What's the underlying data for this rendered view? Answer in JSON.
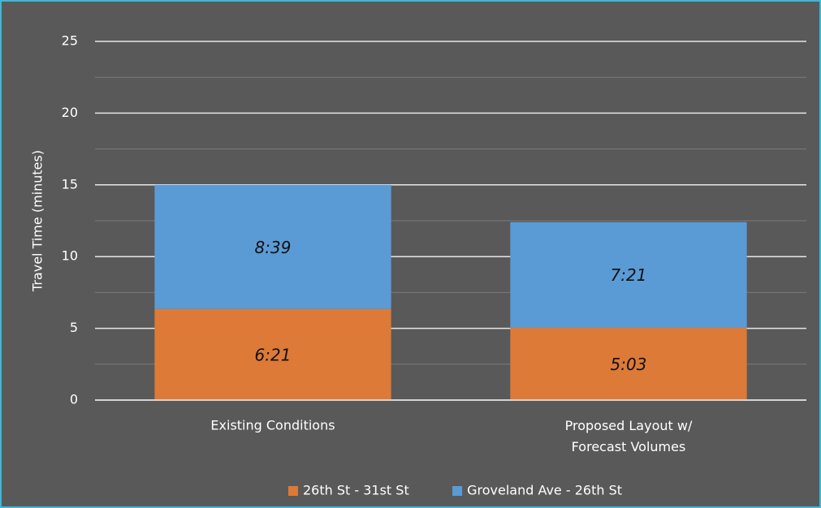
{
  "chart_data": {
    "type": "stacked-bar",
    "y_label": "Travel Time (minutes)",
    "categories": [
      "Existing Conditions",
      "Proposed Layout w/\nForecast Volumes"
    ],
    "series": [
      {
        "name": "26th St - 31st St",
        "color": "#dd7a38",
        "values": [
          6.35,
          5.05
        ],
        "value_labels": [
          "6:21",
          "5:03"
        ]
      },
      {
        "name": "Groveland Ave - 26th St",
        "color": "#5b9bd5",
        "values": [
          8.65,
          7.35
        ],
        "value_labels": [
          "8:39",
          "7:21"
        ]
      }
    ],
    "ylim": [
      0,
      25
    ],
    "yticks": [
      0,
      5,
      10,
      15,
      20,
      25
    ],
    "minor_yticks": [
      2.5,
      7.5,
      12.5,
      17.5,
      22.5
    ],
    "grid": true,
    "legend": "bottom"
  }
}
